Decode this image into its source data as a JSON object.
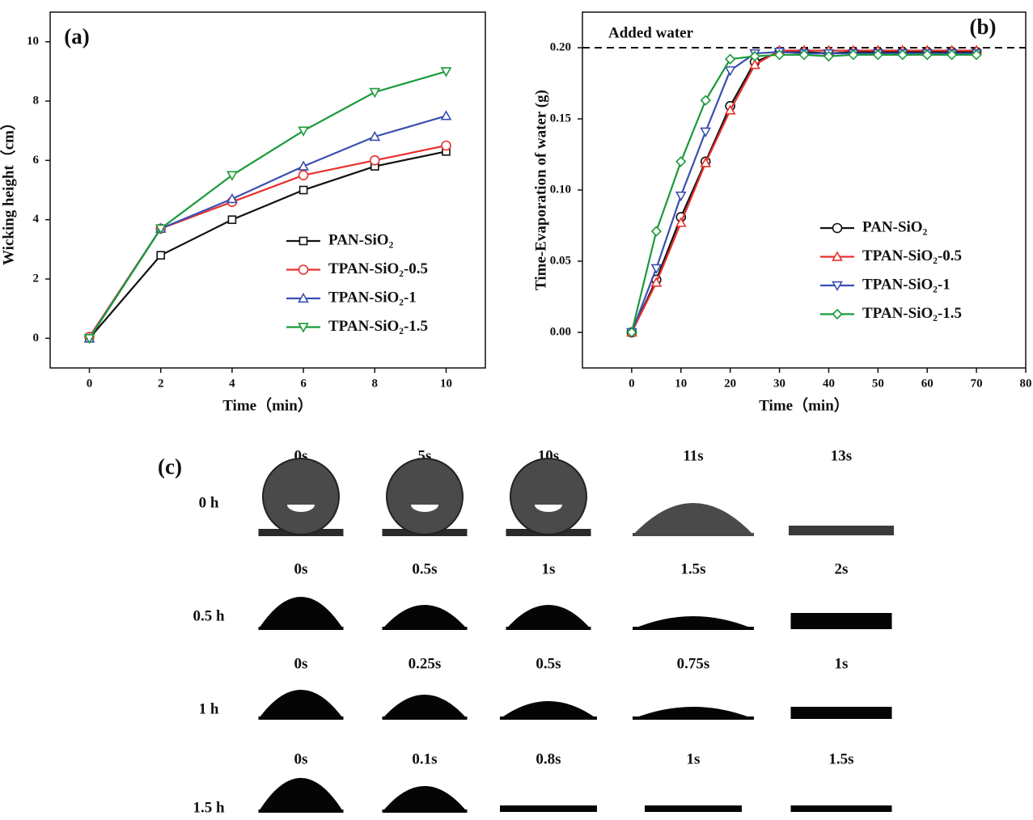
{
  "chart_data": [
    {
      "type": "line",
      "panel_label": "(a)",
      "x_label": "Time（min）",
      "y_label": "Wicking height（cm）",
      "x": [
        0,
        2,
        4,
        6,
        8,
        10
      ],
      "xlim": [
        -1.1,
        11.1
      ],
      "xticks": [
        0,
        2,
        4,
        6,
        8,
        10
      ],
      "ylim": [
        -1,
        11
      ],
      "yticks": [
        0,
        2,
        4,
        6,
        8,
        10
      ],
      "legend": "lower right",
      "series": [
        {
          "name": "PAN-SiO₂",
          "color": "#111111",
          "marker": "square",
          "values": [
            0,
            2.8,
            4.0,
            5.0,
            5.8,
            6.3
          ]
        },
        {
          "name": "TPAN-SiO₂-0.5",
          "color": "#e8312f",
          "marker": "circle",
          "values": [
            0.05,
            3.7,
            4.6,
            5.5,
            6.0,
            6.5
          ]
        },
        {
          "name": "TPAN-SiO₂-1",
          "color": "#3a4fb0",
          "marker": "triangle-up",
          "values": [
            0,
            3.7,
            4.7,
            5.8,
            6.8,
            7.5
          ]
        },
        {
          "name": "TPAN-SiO₂-1.5",
          "color": "#1a9a3a",
          "marker": "triangle-down",
          "values": [
            0,
            3.7,
            5.5,
            7.0,
            8.3,
            9.0
          ]
        }
      ]
    },
    {
      "type": "line",
      "panel_label": "(b)",
      "x_label": "Time（min）",
      "y_label": "Time-Evaporation of water (g)",
      "x": [
        0,
        5,
        10,
        15,
        20,
        25,
        30,
        35,
        40,
        45,
        50,
        55,
        60,
        65,
        70
      ],
      "xlim": [
        -10,
        80
      ],
      "xticks": [
        0,
        10,
        20,
        30,
        40,
        50,
        60,
        70,
        80
      ],
      "ylim": [
        -0.025,
        0.225
      ],
      "yticks": [
        {
          "value": 0,
          "label": "0.00"
        },
        0.05,
        {
          "value": 0.1,
          "label": "0.10"
        },
        0.15,
        {
          "value": 0.2,
          "label": "0.20"
        }
      ],
      "reference_line": {
        "value": 0.2,
        "label": "Added water"
      },
      "legend": "lower right",
      "series": [
        {
          "name": "PAN-SiO₂",
          "color": "#111111",
          "marker": "circle",
          "values": [
            0,
            0.037,
            0.081,
            0.12,
            0.159,
            0.19,
            0.197,
            0.197,
            0.196,
            0.197,
            0.197,
            0.197,
            0.197,
            0.197,
            0.197
          ]
        },
        {
          "name": "TPAN-SiO₂-0.5",
          "color": "#e8312f",
          "marker": "triangle-up",
          "values": [
            0,
            0.035,
            0.077,
            0.119,
            0.156,
            0.188,
            0.198,
            0.198,
            0.198,
            0.198,
            0.198,
            0.198,
            0.198,
            0.198,
            0.198
          ]
        },
        {
          "name": "TPAN-SiO₂-1",
          "color": "#3a4fb0",
          "marker": "triangle-down",
          "values": [
            0,
            0.045,
            0.096,
            0.141,
            0.184,
            0.196,
            0.197,
            0.196,
            0.196,
            0.196,
            0.196,
            0.196,
            0.196,
            0.196,
            0.196
          ]
        },
        {
          "name": "TPAN-SiO₂-1.5",
          "color": "#1a9a3a",
          "marker": "diamond",
          "values": [
            0,
            0.071,
            0.12,
            0.163,
            0.192,
            0.194,
            0.195,
            0.195,
            0.194,
            0.195,
            0.195,
            0.195,
            0.195,
            0.195,
            0.195
          ]
        }
      ]
    }
  ],
  "panel_c": {
    "label": "(c)",
    "rows": [
      {
        "label": "0 h",
        "times": [
          "0s",
          "5s",
          "10s",
          "11s",
          "13s"
        ]
      },
      {
        "label": "0.5 h",
        "times": [
          "0s",
          "0.5s",
          "1s",
          "1.5s",
          "2s"
        ]
      },
      {
        "label": "1 h",
        "times": [
          "0s",
          "0.25s",
          "0.5s",
          "0.75s",
          "1s"
        ]
      },
      {
        "label": "1.5 h",
        "times": [
          "0s",
          "0.1s",
          "0.8s",
          "1s",
          "1.5s"
        ]
      }
    ]
  }
}
